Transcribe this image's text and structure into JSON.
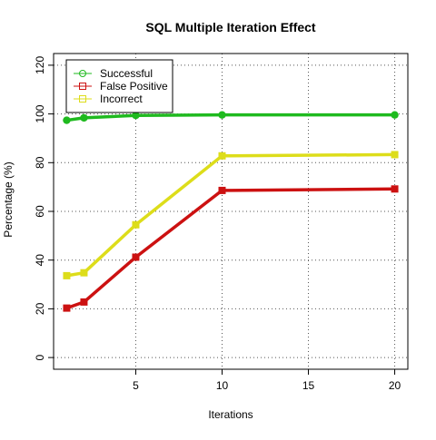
{
  "chart_data": {
    "type": "line",
    "title": "SQL Multiple Iteration Effect",
    "xlabel": "Iterations",
    "ylabel": "Percentage (%)",
    "x": [
      1,
      2,
      5,
      10,
      20
    ],
    "xlim": [
      0.24,
      20.76
    ],
    "ylim": [
      -4.8,
      124.8
    ],
    "xticks": [
      5,
      10,
      15,
      20
    ],
    "yticks": [
      0,
      20,
      40,
      60,
      80,
      100,
      120
    ],
    "grid": true,
    "legend_position": "top-left",
    "series": [
      {
        "name": "Successful",
        "color": "#1fba1f",
        "marker": "circle",
        "values": [
          97.4,
          98.4,
          99.4,
          99.6,
          99.6
        ]
      },
      {
        "name": "False Positive",
        "color": "#cc1111",
        "marker": "square",
        "values": [
          20.3,
          22.8,
          41.2,
          68.6,
          69.2
        ]
      },
      {
        "name": "Incorrect",
        "color": "#dddd1a",
        "marker": "square",
        "values": [
          33.6,
          34.8,
          54.5,
          82.8,
          83.3
        ]
      }
    ]
  }
}
